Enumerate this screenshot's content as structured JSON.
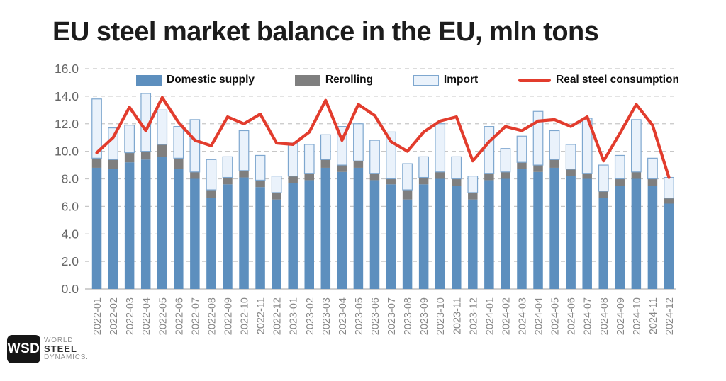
{
  "title": "EU steel market balance in the EU, mln tons",
  "legend": {
    "domestic_label": "Domestic supply",
    "rerolling_label": "Rerolling",
    "import_label": "Import",
    "consumption_label": "Real steel consumption"
  },
  "colors": {
    "domestic": "#5d8fbe",
    "rerolling": "#7f7f7f",
    "import_fill": "#eaf2fb",
    "import_border": "#7ea7cf",
    "consumption": "#e23c2d",
    "grid": "#c7c7c7",
    "axis_line": "#b5b5b5",
    "y_label_text": "#666666",
    "x_label_text": "#878787",
    "title_text": "#1c1c1c"
  },
  "logo": {
    "abbr": "WSD",
    "line1": "WORLD",
    "line2": "STEEL",
    "line3": "DYNAMICS."
  },
  "chart_data": {
    "type": "bar",
    "subtype": "stacked-bars-with-line",
    "title": "EU steel market balance in the EU, mln tons",
    "xlabel": "",
    "ylabel": "",
    "ylim": [
      0,
      16
    ],
    "ytick_step": 2,
    "ytick_format": "one-decimal",
    "grid": true,
    "legend_position": "top",
    "categories": [
      "2022-01",
      "2022-02",
      "2022-03",
      "2022-04",
      "2022-05",
      "2022-06",
      "2022-07",
      "2022-08",
      "2022-09",
      "2022-10",
      "2022-11",
      "2022-12",
      "2023-01",
      "2023-02",
      "2023-03",
      "2023-04",
      "2023-05",
      "2023-06",
      "2023-07",
      "2023-08",
      "2023-09",
      "2023-10",
      "2023-11",
      "2023-12",
      "2024-01",
      "2024-02",
      "2024-03",
      "2024-04",
      "2024-05",
      "2024-06",
      "2024-07",
      "2024-08",
      "2024-09",
      "2024-10",
      "2024-11",
      "2024-12"
    ],
    "series": [
      {
        "name": "Domestic supply",
        "type": "bar",
        "values": [
          8.8,
          8.7,
          9.2,
          9.4,
          9.6,
          8.7,
          8.0,
          6.6,
          7.6,
          8.1,
          7.4,
          6.5,
          7.7,
          7.9,
          8.8,
          8.5,
          8.8,
          7.9,
          7.6,
          6.5,
          7.6,
          8.0,
          7.5,
          6.5,
          7.9,
          8.0,
          8.7,
          8.5,
          8.8,
          8.2,
          8.0,
          6.6,
          7.5,
          8.0,
          7.5,
          6.2
        ]
      },
      {
        "name": "Rerolling",
        "type": "bar",
        "values": [
          0.7,
          0.7,
          0.7,
          0.6,
          0.9,
          0.8,
          0.5,
          0.6,
          0.5,
          0.5,
          0.5,
          0.5,
          0.5,
          0.5,
          0.6,
          0.5,
          0.5,
          0.5,
          0.4,
          0.7,
          0.5,
          0.5,
          0.5,
          0.5,
          0.5,
          0.5,
          0.5,
          0.5,
          0.6,
          0.5,
          0.4,
          0.5,
          0.5,
          0.5,
          0.5,
          0.4
        ]
      },
      {
        "name": "Import",
        "type": "bar",
        "values": [
          4.3,
          2.3,
          2.0,
          4.2,
          2.5,
          2.3,
          3.8,
          2.2,
          1.5,
          2.9,
          1.8,
          1.2,
          2.4,
          2.1,
          1.8,
          2.8,
          2.7,
          2.4,
          3.4,
          1.9,
          1.5,
          3.5,
          1.6,
          1.2,
          3.4,
          1.7,
          1.9,
          3.9,
          2.1,
          1.8,
          4.0,
          1.9,
          1.7,
          3.8,
          1.5,
          1.5
        ]
      },
      {
        "name": "Real steel consumption",
        "type": "line",
        "values": [
          9.9,
          11.0,
          13.2,
          11.5,
          13.9,
          12.1,
          10.8,
          10.4,
          12.5,
          12.0,
          12.7,
          10.6,
          10.5,
          11.4,
          13.7,
          10.8,
          13.4,
          12.6,
          10.7,
          10.0,
          11.4,
          12.2,
          12.5,
          9.3,
          10.7,
          11.8,
          11.5,
          12.2,
          12.3,
          11.8,
          12.5,
          9.3,
          11.3,
          13.4,
          11.9,
          8.1
        ]
      }
    ]
  }
}
